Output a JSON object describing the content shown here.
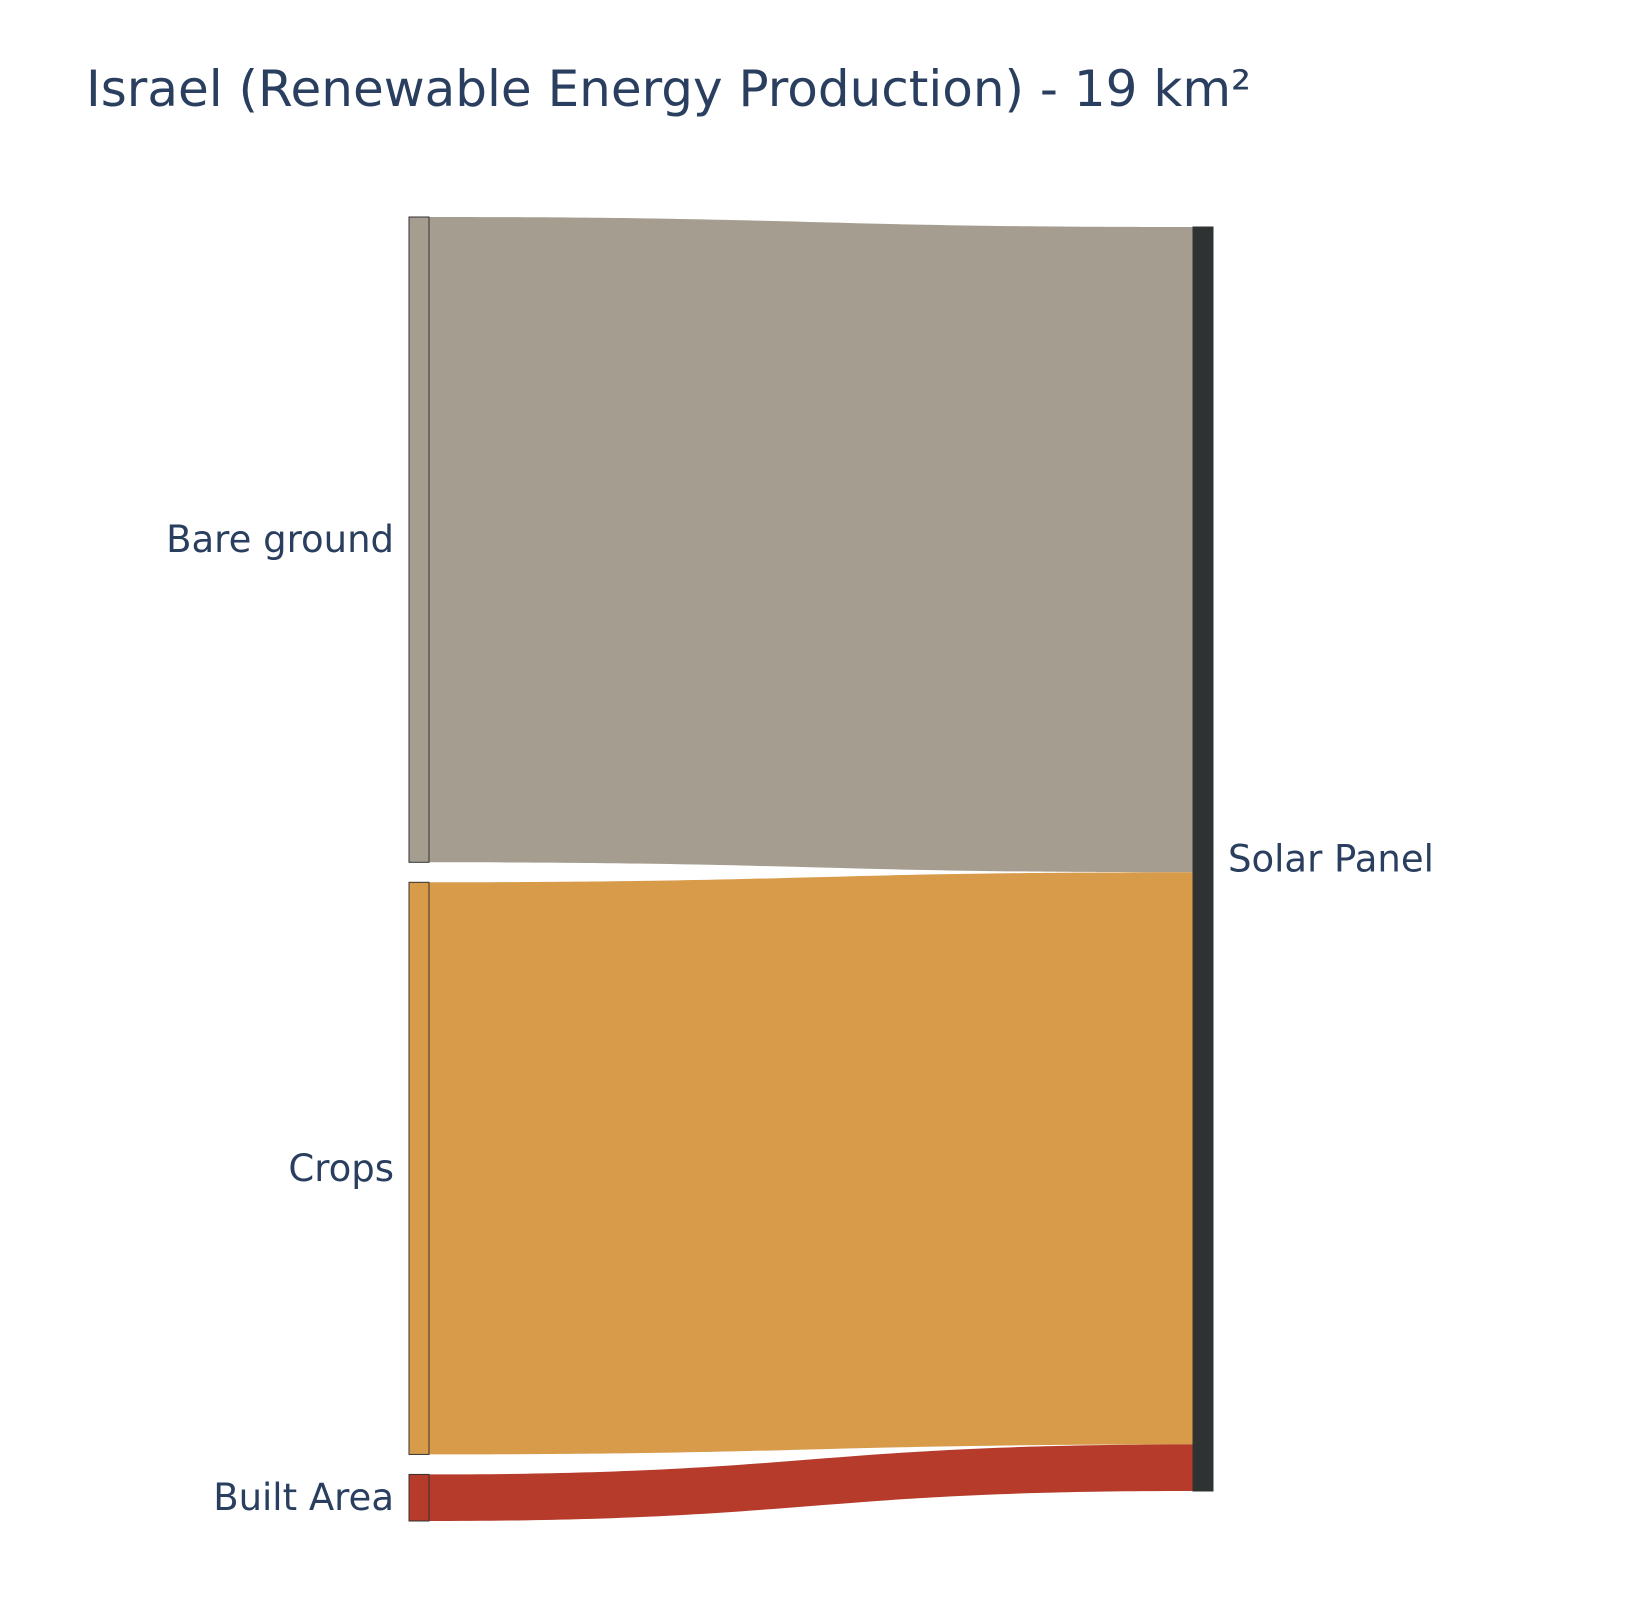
{
  "title": "Israel (Renewable Energy Production) - 19 km²",
  "chart_data": {
    "type": "sankey",
    "title": "Israel (Renewable Energy Production) - 19 km²",
    "nodes": [
      {
        "id": "bare",
        "label": "Bare ground",
        "color": "#a59d8f"
      },
      {
        "id": "crops",
        "label": "Crops",
        "color": "#d89b4a"
      },
      {
        "id": "built",
        "label": "Built Area",
        "color": "#b63b2b"
      },
      {
        "id": "solar",
        "label": "Solar Panel",
        "color": "#2e3233"
      }
    ],
    "links": [
      {
        "source": "bare",
        "target": "solar",
        "value": 9.7,
        "color": "#a59d8f"
      },
      {
        "source": "crops",
        "target": "solar",
        "value": 8.6,
        "color": "#d89b4a"
      },
      {
        "source": "built",
        "target": "solar",
        "value": 0.7,
        "color": "#b63b2b"
      }
    ],
    "total_km2": 19
  }
}
